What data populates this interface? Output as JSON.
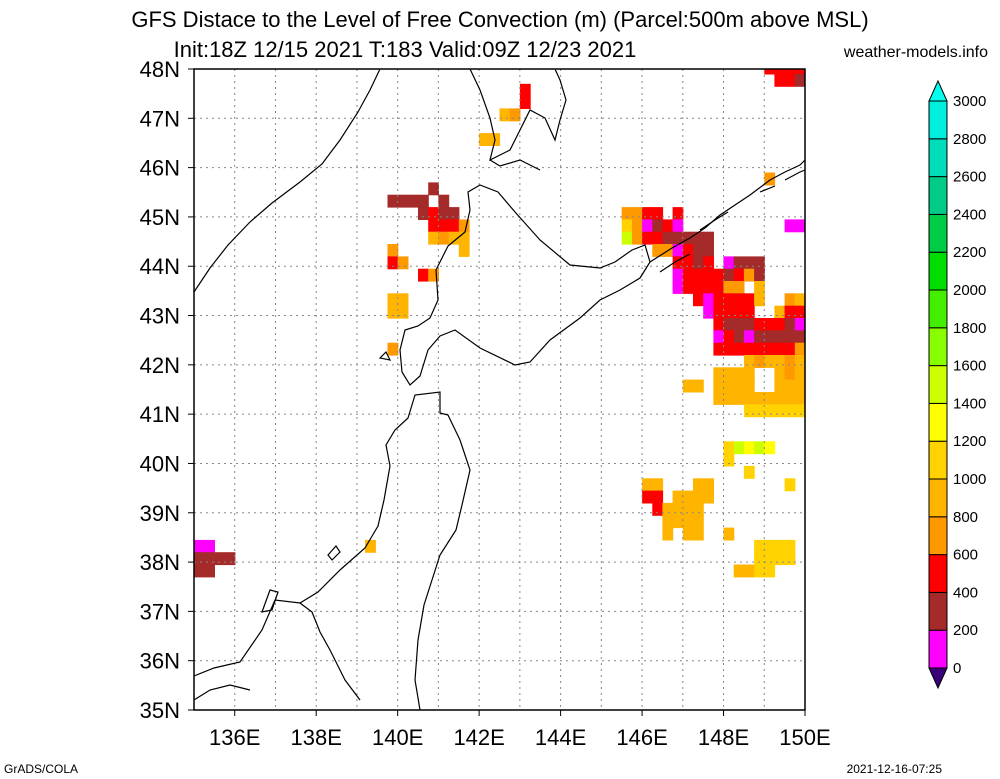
{
  "header": {
    "title_line1": "GFS Distace to the Level of Free Convection (m) (Parcel:500m above MSL)",
    "title_line2": "Init:18Z 12/15 2021 T:183 Valid:09Z 12/23 2021",
    "site": "weather-models.info"
  },
  "footer": {
    "credit": "GrADS/COLA",
    "timestamp": "2021-12-16-07:25"
  },
  "map": {
    "lat_labels": [
      "35N",
      "36N",
      "37N",
      "38N",
      "39N",
      "40N",
      "41N",
      "42N",
      "43N",
      "44N",
      "45N",
      "46N",
      "47N",
      "48N"
    ],
    "lon_labels": [
      "136E",
      "138E",
      "140E",
      "142E",
      "144E",
      "146E",
      "148E",
      "150E"
    ],
    "lat_range": [
      35,
      48
    ],
    "lon_range": [
      135,
      150
    ]
  },
  "colorbar": {
    "labels": [
      "0",
      "200",
      "400",
      "600",
      "800",
      "1000",
      "1200",
      "1400",
      "1600",
      "1800",
      "2000",
      "2200",
      "2400",
      "2600",
      "2800",
      "3000"
    ],
    "colors": [
      "#3a007a",
      "#ff00ff",
      "#a52a2a",
      "#ff0000",
      "#ff9900",
      "#ffb400",
      "#ffd200",
      "#ffff00",
      "#ccff00",
      "#88ff00",
      "#44ee00",
      "#00dd00",
      "#00cc44",
      "#00cc88",
      "#00ddbb",
      "#00eedd",
      "#00ffee"
    ]
  },
  "cells": [
    {
      "lon": 135.0,
      "lat": 38.2,
      "c": "#ff00ff"
    },
    {
      "lon": 135.25,
      "lat": 38.2,
      "c": "#ff00ff"
    },
    {
      "lon": 135.0,
      "lat": 37.95,
      "c": "#a52a2a"
    },
    {
      "lon": 135.25,
      "lat": 37.95,
      "c": "#a52a2a"
    },
    {
      "lon": 135.5,
      "lat": 37.95,
      "c": "#a52a2a"
    },
    {
      "lon": 135.75,
      "lat": 37.95,
      "c": "#a52a2a"
    },
    {
      "lon": 135.0,
      "lat": 37.7,
      "c": "#a52a2a"
    },
    {
      "lon": 135.25,
      "lat": 37.7,
      "c": "#a52a2a"
    },
    {
      "lon": 139.2,
      "lat": 38.2,
      "c": "#ffb400"
    },
    {
      "lon": 149.0,
      "lat": 47.9,
      "c": "#ff0000"
    },
    {
      "lon": 149.25,
      "lat": 47.9,
      "c": "#ff0000"
    },
    {
      "lon": 149.5,
      "lat": 47.9,
      "c": "#ff0000"
    },
    {
      "lon": 149.75,
      "lat": 47.9,
      "c": "#ff0000"
    },
    {
      "lon": 149.25,
      "lat": 47.65,
      "c": "#ff0000"
    },
    {
      "lon": 149.5,
      "lat": 47.65,
      "c": "#ff0000"
    },
    {
      "lon": 149.75,
      "lat": 47.65,
      "c": "#a52a2a"
    },
    {
      "lon": 143.0,
      "lat": 47.45,
      "c": "#ff0000"
    },
    {
      "lon": 143.0,
      "lat": 47.2,
      "c": "#ff0000"
    },
    {
      "lon": 142.5,
      "lat": 46.95,
      "c": "#ffb400"
    },
    {
      "lon": 142.75,
      "lat": 46.95,
      "c": "#ff9900"
    },
    {
      "lon": 142.0,
      "lat": 46.45,
      "c": "#ffb400"
    },
    {
      "lon": 142.25,
      "lat": 46.45,
      "c": "#ffb400"
    },
    {
      "lon": 149.0,
      "lat": 45.65,
      "c": "#ff9900"
    },
    {
      "lon": 140.75,
      "lat": 45.45,
      "c": "#a52a2a"
    },
    {
      "lon": 139.75,
      "lat": 45.2,
      "c": "#a52a2a"
    },
    {
      "lon": 140.0,
      "lat": 45.2,
      "c": "#a52a2a"
    },
    {
      "lon": 140.25,
      "lat": 45.2,
      "c": "#a52a2a"
    },
    {
      "lon": 140.5,
      "lat": 45.2,
      "c": "#a52a2a"
    },
    {
      "lon": 141.0,
      "lat": 45.2,
      "c": "#a52a2a"
    },
    {
      "lon": 140.5,
      "lat": 44.95,
      "c": "#a52a2a"
    },
    {
      "lon": 140.75,
      "lat": 44.95,
      "c": "#ff0000"
    },
    {
      "lon": 141.0,
      "lat": 44.95,
      "c": "#a52a2a"
    },
    {
      "lon": 141.25,
      "lat": 44.95,
      "c": "#a52a2a"
    },
    {
      "lon": 140.75,
      "lat": 44.7,
      "c": "#ff0000"
    },
    {
      "lon": 141.0,
      "lat": 44.7,
      "c": "#ff0000"
    },
    {
      "lon": 141.25,
      "lat": 44.7,
      "c": "#ff0000"
    },
    {
      "lon": 141.5,
      "lat": 44.7,
      "c": "#ff9900"
    },
    {
      "lon": 140.75,
      "lat": 44.45,
      "c": "#ffb400"
    },
    {
      "lon": 141.0,
      "lat": 44.45,
      "c": "#ff9900"
    },
    {
      "lon": 141.25,
      "lat": 44.45,
      "c": "#ffb400"
    },
    {
      "lon": 141.5,
      "lat": 44.45,
      "c": "#ffb400"
    },
    {
      "lon": 141.5,
      "lat": 44.2,
      "c": "#ffb400"
    },
    {
      "lon": 139.75,
      "lat": 44.2,
      "c": "#ff9900"
    },
    {
      "lon": 139.75,
      "lat": 43.95,
      "c": "#ff0000"
    },
    {
      "lon": 140.0,
      "lat": 43.95,
      "c": "#ff9900"
    },
    {
      "lon": 140.5,
      "lat": 43.7,
      "c": "#ff0000"
    },
    {
      "lon": 140.75,
      "lat": 43.7,
      "c": "#ff9900"
    },
    {
      "lon": 139.75,
      "lat": 43.2,
      "c": "#ffb400"
    },
    {
      "lon": 140.0,
      "lat": 43.2,
      "c": "#ffb400"
    },
    {
      "lon": 139.75,
      "lat": 42.95,
      "c": "#ffb400"
    },
    {
      "lon": 140.0,
      "lat": 42.95,
      "c": "#ffb400"
    },
    {
      "lon": 139.75,
      "lat": 42.2,
      "c": "#ff9900"
    },
    {
      "lon": 145.5,
      "lat": 44.95,
      "c": "#ff9900"
    },
    {
      "lon": 145.75,
      "lat": 44.95,
      "c": "#ff9900"
    },
    {
      "lon": 146.0,
      "lat": 44.95,
      "c": "#ff0000"
    },
    {
      "lon": 146.25,
      "lat": 44.95,
      "c": "#ff0000"
    },
    {
      "lon": 146.75,
      "lat": 44.95,
      "c": "#ff0000"
    },
    {
      "lon": 145.5,
      "lat": 44.7,
      "c": "#ffd200"
    },
    {
      "lon": 145.75,
      "lat": 44.7,
      "c": "#ff9900"
    },
    {
      "lon": 146.0,
      "lat": 44.7,
      "c": "#ff00ff"
    },
    {
      "lon": 146.25,
      "lat": 44.7,
      "c": "#a52a2a"
    },
    {
      "lon": 146.5,
      "lat": 44.7,
      "c": "#ff0000"
    },
    {
      "lon": 146.75,
      "lat": 44.7,
      "c": "#ff00ff"
    },
    {
      "lon": 145.5,
      "lat": 44.45,
      "c": "#ccff00"
    },
    {
      "lon": 145.75,
      "lat": 44.45,
      "c": "#ff9900"
    },
    {
      "lon": 146.0,
      "lat": 44.45,
      "c": "#ff0000"
    },
    {
      "lon": 146.25,
      "lat": 44.45,
      "c": "#ff0000"
    },
    {
      "lon": 146.5,
      "lat": 44.45,
      "c": "#a52a2a"
    },
    {
      "lon": 146.75,
      "lat": 44.45,
      "c": "#a52a2a"
    },
    {
      "lon": 147.0,
      "lat": 44.45,
      "c": "#a52a2a"
    },
    {
      "lon": 147.25,
      "lat": 44.45,
      "c": "#a52a2a"
    },
    {
      "lon": 147.5,
      "lat": 44.45,
      "c": "#a52a2a"
    },
    {
      "lon": 146.25,
      "lat": 44.2,
      "c": "#ff9900"
    },
    {
      "lon": 146.5,
      "lat": 44.2,
      "c": "#ff9900"
    },
    {
      "lon": 146.75,
      "lat": 44.2,
      "c": "#ff00ff"
    },
    {
      "lon": 147.0,
      "lat": 44.2,
      "c": "#ff0000"
    },
    {
      "lon": 147.25,
      "lat": 44.2,
      "c": "#a52a2a"
    },
    {
      "lon": 147.5,
      "lat": 44.2,
      "c": "#a52a2a"
    },
    {
      "lon": 146.75,
      "lat": 43.95,
      "c": "#ff0000"
    },
    {
      "lon": 147.0,
      "lat": 43.95,
      "c": "#ff0000"
    },
    {
      "lon": 147.25,
      "lat": 43.95,
      "c": "#a52a2a"
    },
    {
      "lon": 147.5,
      "lat": 43.95,
      "c": "#ff0000"
    },
    {
      "lon": 148.0,
      "lat": 43.95,
      "c": "#ff00ff"
    },
    {
      "lon": 148.25,
      "lat": 43.95,
      "c": "#a52a2a"
    },
    {
      "lon": 148.5,
      "lat": 43.95,
      "c": "#a52a2a"
    },
    {
      "lon": 148.75,
      "lat": 43.95,
      "c": "#a52a2a"
    },
    {
      "lon": 146.75,
      "lat": 43.7,
      "c": "#ff00ff"
    },
    {
      "lon": 147.0,
      "lat": 43.7,
      "c": "#ff0000"
    },
    {
      "lon": 147.25,
      "lat": 43.7,
      "c": "#ff0000"
    },
    {
      "lon": 147.5,
      "lat": 43.7,
      "c": "#ff0000"
    },
    {
      "lon": 147.75,
      "lat": 43.7,
      "c": "#ff0000"
    },
    {
      "lon": 148.0,
      "lat": 43.7,
      "c": "#a52a2a"
    },
    {
      "lon": 148.25,
      "lat": 43.7,
      "c": "#ff0000"
    },
    {
      "lon": 148.5,
      "lat": 43.7,
      "c": "#ff9900"
    },
    {
      "lon": 148.75,
      "lat": 43.7,
      "c": "#a52a2a"
    },
    {
      "lon": 146.75,
      "lat": 43.45,
      "c": "#ff00ff"
    },
    {
      "lon": 147.0,
      "lat": 43.45,
      "c": "#ff0000"
    },
    {
      "lon": 147.25,
      "lat": 43.45,
      "c": "#ff0000"
    },
    {
      "lon": 147.5,
      "lat": 43.45,
      "c": "#ff0000"
    },
    {
      "lon": 147.75,
      "lat": 43.45,
      "c": "#ff0000"
    },
    {
      "lon": 148.0,
      "lat": 43.45,
      "c": "#ff9900"
    },
    {
      "lon": 148.25,
      "lat": 43.45,
      "c": "#ff9900"
    },
    {
      "lon": 148.75,
      "lat": 43.45,
      "c": "#ffb400"
    },
    {
      "lon": 147.25,
      "lat": 43.2,
      "c": "#ff0000"
    },
    {
      "lon": 147.5,
      "lat": 43.2,
      "c": "#ff00ff"
    },
    {
      "lon": 147.75,
      "lat": 43.2,
      "c": "#ff0000"
    },
    {
      "lon": 148.0,
      "lat": 43.2,
      "c": "#ff0000"
    },
    {
      "lon": 148.25,
      "lat": 43.2,
      "c": "#ff0000"
    },
    {
      "lon": 148.5,
      "lat": 43.2,
      "c": "#ff0000"
    },
    {
      "lon": 148.75,
      "lat": 43.2,
      "c": "#ffb400"
    },
    {
      "lon": 149.5,
      "lat": 43.2,
      "c": "#ff9900"
    },
    {
      "lon": 149.75,
      "lat": 43.2,
      "c": "#ffb400"
    },
    {
      "lon": 147.5,
      "lat": 42.95,
      "c": "#ff00ff"
    },
    {
      "lon": 147.75,
      "lat": 42.95,
      "c": "#ff0000"
    },
    {
      "lon": 148.0,
      "lat": 42.95,
      "c": "#ff0000"
    },
    {
      "lon": 148.25,
      "lat": 42.95,
      "c": "#ff0000"
    },
    {
      "lon": 148.5,
      "lat": 42.95,
      "c": "#ff0000"
    },
    {
      "lon": 149.25,
      "lat": 42.95,
      "c": "#ffb400"
    },
    {
      "lon": 149.5,
      "lat": 42.95,
      "c": "#ff0000"
    },
    {
      "lon": 149.75,
      "lat": 42.95,
      "c": "#ff0000"
    },
    {
      "lon": 147.75,
      "lat": 42.7,
      "c": "#ff0000"
    },
    {
      "lon": 148.0,
      "lat": 42.7,
      "c": "#a52a2a"
    },
    {
      "lon": 148.25,
      "lat": 42.7,
      "c": "#a52a2a"
    },
    {
      "lon": 148.5,
      "lat": 42.7,
      "c": "#a52a2a"
    },
    {
      "lon": 148.75,
      "lat": 42.7,
      "c": "#ff0000"
    },
    {
      "lon": 149.0,
      "lat": 42.7,
      "c": "#ff0000"
    },
    {
      "lon": 149.25,
      "lat": 42.7,
      "c": "#ff0000"
    },
    {
      "lon": 149.5,
      "lat": 42.7,
      "c": "#a52a2a"
    },
    {
      "lon": 149.75,
      "lat": 42.7,
      "c": "#ff00ff"
    },
    {
      "lon": 147.75,
      "lat": 42.45,
      "c": "#ff00ff"
    },
    {
      "lon": 148.0,
      "lat": 42.45,
      "c": "#ff0000"
    },
    {
      "lon": 148.25,
      "lat": 42.45,
      "c": "#a52a2a"
    },
    {
      "lon": 148.5,
      "lat": 42.45,
      "c": "#ff00ff"
    },
    {
      "lon": 148.75,
      "lat": 42.45,
      "c": "#a52a2a"
    },
    {
      "lon": 149.0,
      "lat": 42.45,
      "c": "#a52a2a"
    },
    {
      "lon": 149.25,
      "lat": 42.45,
      "c": "#a52a2a"
    },
    {
      "lon": 149.5,
      "lat": 42.45,
      "c": "#a52a2a"
    },
    {
      "lon": 149.75,
      "lat": 42.45,
      "c": "#a52a2a"
    },
    {
      "lon": 147.75,
      "lat": 42.2,
      "c": "#ff0000"
    },
    {
      "lon": 148.0,
      "lat": 42.2,
      "c": "#ff0000"
    },
    {
      "lon": 148.25,
      "lat": 42.2,
      "c": "#ff0000"
    },
    {
      "lon": 148.5,
      "lat": 42.2,
      "c": "#ff0000"
    },
    {
      "lon": 148.75,
      "lat": 42.2,
      "c": "#ff0000"
    },
    {
      "lon": 149.0,
      "lat": 42.2,
      "c": "#ff0000"
    },
    {
      "lon": 149.25,
      "lat": 42.2,
      "c": "#ff0000"
    },
    {
      "lon": 149.5,
      "lat": 42.2,
      "c": "#ff0000"
    },
    {
      "lon": 149.75,
      "lat": 42.2,
      "c": "#ff9900"
    },
    {
      "lon": 148.5,
      "lat": 41.95,
      "c": "#ffb400"
    },
    {
      "lon": 148.75,
      "lat": 41.95,
      "c": "#ff9900"
    },
    {
      "lon": 149.0,
      "lat": 41.95,
      "c": "#ffb400"
    },
    {
      "lon": 149.25,
      "lat": 41.95,
      "c": "#ffb400"
    },
    {
      "lon": 149.5,
      "lat": 41.95,
      "c": "#ff9900"
    },
    {
      "lon": 149.75,
      "lat": 41.95,
      "c": "#ffb400"
    },
    {
      "lon": 147.75,
      "lat": 41.7,
      "c": "#ffb400"
    },
    {
      "lon": 148.0,
      "lat": 41.7,
      "c": "#ffb400"
    },
    {
      "lon": 148.25,
      "lat": 41.7,
      "c": "#ffb400"
    },
    {
      "lon": 148.5,
      "lat": 41.7,
      "c": "#ffb400"
    },
    {
      "lon": 149.25,
      "lat": 41.7,
      "c": "#ffb400"
    },
    {
      "lon": 149.5,
      "lat": 41.7,
      "c": "#ff9900"
    },
    {
      "lon": 149.75,
      "lat": 41.7,
      "c": "#ffb400"
    },
    {
      "lon": 147.0,
      "lat": 41.45,
      "c": "#ffb400"
    },
    {
      "lon": 147.25,
      "lat": 41.45,
      "c": "#ffb400"
    },
    {
      "lon": 147.75,
      "lat": 41.45,
      "c": "#ffb400"
    },
    {
      "lon": 148.0,
      "lat": 41.45,
      "c": "#ffb400"
    },
    {
      "lon": 148.25,
      "lat": 41.45,
      "c": "#ffb400"
    },
    {
      "lon": 148.5,
      "lat": 41.45,
      "c": "#ffb400"
    },
    {
      "lon": 149.25,
      "lat": 41.45,
      "c": "#ffb400"
    },
    {
      "lon": 149.5,
      "lat": 41.45,
      "c": "#ffb400"
    },
    {
      "lon": 149.75,
      "lat": 41.45,
      "c": "#ffb400"
    },
    {
      "lon": 147.75,
      "lat": 41.2,
      "c": "#ffb400"
    },
    {
      "lon": 148.0,
      "lat": 41.2,
      "c": "#ffb400"
    },
    {
      "lon": 148.25,
      "lat": 41.2,
      "c": "#ffb400"
    },
    {
      "lon": 148.5,
      "lat": 41.2,
      "c": "#ffb400"
    },
    {
      "lon": 148.75,
      "lat": 41.2,
      "c": "#ffb400"
    },
    {
      "lon": 149.0,
      "lat": 41.2,
      "c": "#ffb400"
    },
    {
      "lon": 149.25,
      "lat": 41.2,
      "c": "#ffb400"
    },
    {
      "lon": 149.5,
      "lat": 41.2,
      "c": "#ffb400"
    },
    {
      "lon": 149.75,
      "lat": 41.2,
      "c": "#ffb400"
    },
    {
      "lon": 148.5,
      "lat": 40.95,
      "c": "#ffd200"
    },
    {
      "lon": 148.75,
      "lat": 40.95,
      "c": "#ffd200"
    },
    {
      "lon": 149.0,
      "lat": 40.95,
      "c": "#ffd200"
    },
    {
      "lon": 149.25,
      "lat": 40.95,
      "c": "#ffd200"
    },
    {
      "lon": 149.5,
      "lat": 40.95,
      "c": "#ffd200"
    },
    {
      "lon": 149.75,
      "lat": 40.95,
      "c": "#ffd200"
    },
    {
      "lon": 148.0,
      "lat": 40.2,
      "c": "#ffd200"
    },
    {
      "lon": 148.25,
      "lat": 40.2,
      "c": "#ccff00"
    },
    {
      "lon": 148.5,
      "lat": 40.2,
      "c": "#ffff00"
    },
    {
      "lon": 148.75,
      "lat": 40.2,
      "c": "#ccff00"
    },
    {
      "lon": 149.0,
      "lat": 40.2,
      "c": "#ffff00"
    },
    {
      "lon": 148.0,
      "lat": 39.95,
      "c": "#ffd200"
    },
    {
      "lon": 148.5,
      "lat": 39.7,
      "c": "#ffd200"
    },
    {
      "lon": 146.0,
      "lat": 39.45,
      "c": "#ffb400"
    },
    {
      "lon": 146.25,
      "lat": 39.45,
      "c": "#ffb400"
    },
    {
      "lon": 147.25,
      "lat": 39.45,
      "c": "#ffb400"
    },
    {
      "lon": 147.5,
      "lat": 39.45,
      "c": "#ffb400"
    },
    {
      "lon": 149.5,
      "lat": 39.45,
      "c": "#ffd200"
    },
    {
      "lon": 146.0,
      "lat": 39.2,
      "c": "#ff0000"
    },
    {
      "lon": 146.25,
      "lat": 39.2,
      "c": "#ff0000"
    },
    {
      "lon": 146.75,
      "lat": 39.2,
      "c": "#ffb400"
    },
    {
      "lon": 147.0,
      "lat": 39.2,
      "c": "#ffb400"
    },
    {
      "lon": 147.25,
      "lat": 39.2,
      "c": "#ffb400"
    },
    {
      "lon": 147.5,
      "lat": 39.2,
      "c": "#ffb400"
    },
    {
      "lon": 146.25,
      "lat": 38.95,
      "c": "#ff0000"
    },
    {
      "lon": 146.5,
      "lat": 38.95,
      "c": "#ffb400"
    },
    {
      "lon": 146.75,
      "lat": 38.95,
      "c": "#ffb400"
    },
    {
      "lon": 147.0,
      "lat": 38.95,
      "c": "#ffb400"
    },
    {
      "lon": 147.25,
      "lat": 38.95,
      "c": "#ffb400"
    },
    {
      "lon": 146.5,
      "lat": 38.7,
      "c": "#ffb400"
    },
    {
      "lon": 146.75,
      "lat": 38.7,
      "c": "#ffb400"
    },
    {
      "lon": 147.0,
      "lat": 38.7,
      "c": "#ffb400"
    },
    {
      "lon": 147.25,
      "lat": 38.7,
      "c": "#ffb400"
    },
    {
      "lon": 146.5,
      "lat": 38.45,
      "c": "#ffb400"
    },
    {
      "lon": 147.0,
      "lat": 38.45,
      "c": "#ffb400"
    },
    {
      "lon": 147.25,
      "lat": 38.45,
      "c": "#ffb400"
    },
    {
      "lon": 148.0,
      "lat": 38.45,
      "c": "#ffb400"
    },
    {
      "lon": 148.75,
      "lat": 38.2,
      "c": "#ffd200"
    },
    {
      "lon": 149.0,
      "lat": 38.2,
      "c": "#ffd200"
    },
    {
      "lon": 149.25,
      "lat": 38.2,
      "c": "#ffd200"
    },
    {
      "lon": 149.5,
      "lat": 38.2,
      "c": "#ffd200"
    },
    {
      "lon": 148.75,
      "lat": 37.95,
      "c": "#ffd200"
    },
    {
      "lon": 149.0,
      "lat": 37.95,
      "c": "#ffd200"
    },
    {
      "lon": 149.25,
      "lat": 37.95,
      "c": "#ffd200"
    },
    {
      "lon": 149.5,
      "lat": 37.95,
      "c": "#ffd200"
    },
    {
      "lon": 148.25,
      "lat": 37.7,
      "c": "#ffb400"
    },
    {
      "lon": 148.5,
      "lat": 37.7,
      "c": "#ffb400"
    },
    {
      "lon": 148.75,
      "lat": 37.7,
      "c": "#ffd200"
    },
    {
      "lon": 149.0,
      "lat": 37.7,
      "c": "#ffd200"
    },
    {
      "lon": 149.5,
      "lat": 44.7,
      "c": "#ff00ff"
    },
    {
      "lon": 149.75,
      "lat": 44.7,
      "c": "#ff00ff"
    }
  ]
}
